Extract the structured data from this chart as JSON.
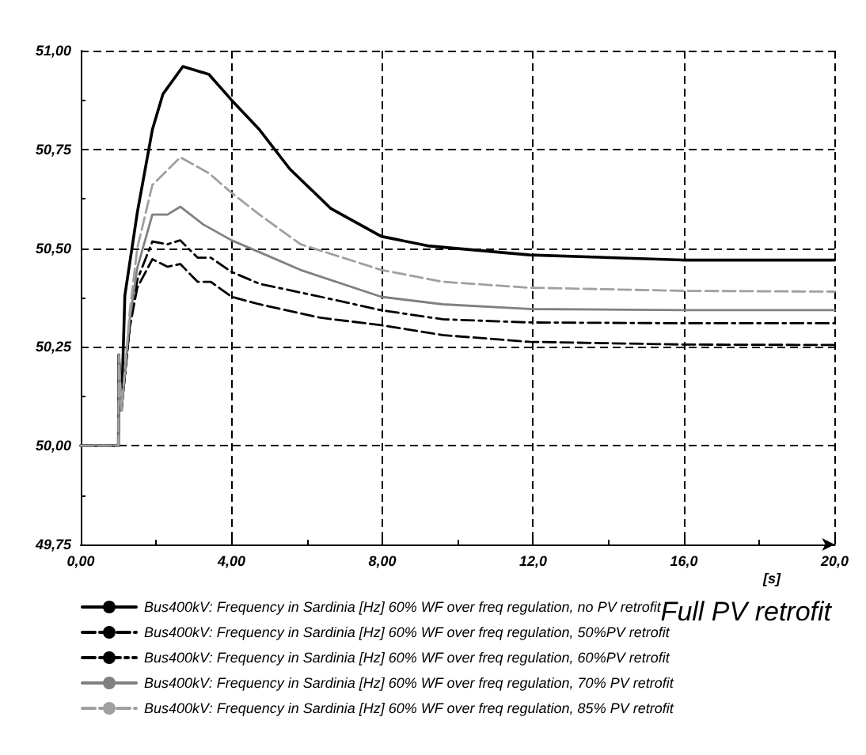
{
  "chart_data": {
    "type": "line",
    "xlabel": "[s]",
    "annotations": [
      "Full PV retrofit"
    ],
    "xlim": [
      0,
      20
    ],
    "xticks": [
      {
        "value": 0,
        "label": "0,00"
      },
      {
        "value": 4,
        "label": "4,00"
      },
      {
        "value": 8,
        "label": "8,00"
      },
      {
        "value": 12,
        "label": "12,0"
      },
      {
        "value": 16,
        "label": "16,0"
      },
      {
        "value": 20,
        "label": "20,0"
      }
    ],
    "ylim": [
      49.75,
      51
    ],
    "yticks": [
      {
        "value": 49.75,
        "label": "49,75"
      },
      {
        "value": 50,
        "label": "50,00"
      },
      {
        "value": 50.25,
        "label": "50,25"
      },
      {
        "value": 50.5,
        "label": "50,50"
      },
      {
        "value": 50.75,
        "label": "50,75"
      },
      {
        "value": 51,
        "label": "51,00"
      }
    ],
    "grid": true,
    "legend": "bottom",
    "marker": "none",
    "series": [
      {
        "name": "Bus400kV: Frequency in Sardinia [Hz] 60% WF over freq regulation, no PV retrofit",
        "color": "#000000",
        "line_style": "solid",
        "x": [
          0,
          1.0,
          1.01,
          1.08,
          1.17,
          1.5,
          1.9,
          2.18,
          2.71,
          3.4,
          4.0,
          4.74,
          5.55,
          6.64,
          7.97,
          9.2,
          11.9,
          15.95,
          20
        ],
        "values": [
          50,
          50,
          50.23,
          50.09,
          50.38,
          50.59,
          50.8,
          50.89,
          50.96,
          50.94,
          50.875,
          50.8,
          50.7,
          50.6,
          50.53,
          50.506,
          50.483,
          50.47,
          50.47
        ]
      },
      {
        "name": "Bus400kV: Frequency in Sardinia [Hz] 60% WF over freq regulation, 50%PV retrofit",
        "color": "#000000",
        "line_style": "dashed",
        "x": [
          0,
          1.0,
          1.01,
          1.08,
          1.3,
          1.5,
          1.9,
          2.3,
          2.64,
          3.1,
          3.45,
          4.0,
          4.74,
          6.36,
          7.97,
          9.6,
          11.9,
          16,
          20
        ],
        "values": [
          50,
          50,
          50.23,
          50.09,
          50.3,
          50.4,
          50.472,
          50.453,
          50.46,
          50.415,
          50.415,
          50.377,
          50.358,
          50.324,
          50.305,
          50.28,
          50.263,
          50.256,
          50.255
        ]
      },
      {
        "name": "Bus400kV: Frequency in Sardinia [Hz] 60% WF over freq regulation, 60%PV retrofit",
        "color": "#000000",
        "line_style": "dashdot",
        "x": [
          0,
          1.0,
          1.01,
          1.08,
          1.3,
          1.5,
          1.9,
          2.3,
          2.64,
          3.1,
          3.45,
          4.0,
          4.74,
          6.36,
          7.97,
          9.6,
          11.9,
          16,
          20
        ],
        "values": [
          50,
          50,
          50.23,
          50.09,
          50.3,
          50.42,
          50.517,
          50.51,
          50.52,
          50.476,
          50.476,
          50.44,
          50.41,
          50.377,
          50.343,
          50.32,
          50.312,
          50.31,
          50.31
        ]
      },
      {
        "name": "Bus400kV: Frequency in Sardinia [Hz] 60% WF over freq regulation, 70% PV retrofit",
        "color": "#808080",
        "line_style": "solid",
        "x": [
          0,
          1.0,
          1.01,
          1.08,
          1.3,
          1.5,
          1.9,
          2.3,
          2.64,
          3.25,
          4.0,
          4.74,
          5.83,
          7.97,
          9.6,
          11.9,
          16,
          20
        ],
        "values": [
          50,
          50,
          50.23,
          50.09,
          50.32,
          50.45,
          50.585,
          50.585,
          50.605,
          50.56,
          50.52,
          50.49,
          50.445,
          50.377,
          50.358,
          50.346,
          50.343,
          50.343
        ]
      },
      {
        "name": "Bus400kV: Frequency in Sardinia [Hz] 60% WF over freq regulation, 85% PV retrofit",
        "color": "#a0a0a0",
        "line_style": "dashed",
        "x": [
          0,
          1.0,
          1.01,
          1.08,
          1.3,
          1.5,
          1.9,
          2.64,
          3.4,
          4.0,
          4.74,
          5.83,
          7.97,
          9.6,
          11.9,
          16,
          20
        ],
        "values": [
          50,
          50,
          50.23,
          50.09,
          50.34,
          50.5,
          50.66,
          50.73,
          50.69,
          50.64,
          50.585,
          50.51,
          50.445,
          50.415,
          50.4,
          50.392,
          50.39
        ]
      }
    ]
  }
}
